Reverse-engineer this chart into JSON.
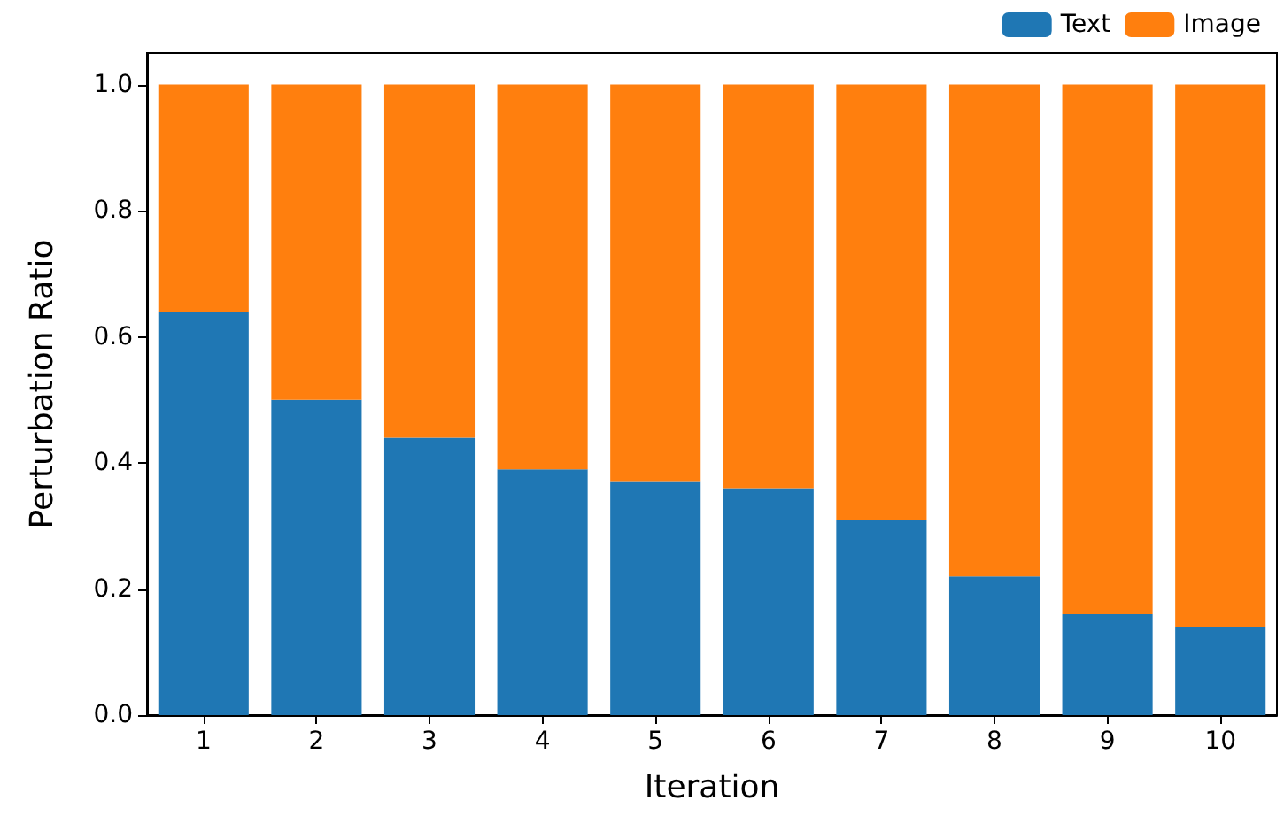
{
  "chart_data": {
    "type": "bar",
    "stacked": true,
    "xlabel": "Iteration",
    "ylabel": "Perturbation Ratio",
    "categories": [
      "1",
      "2",
      "3",
      "4",
      "5",
      "6",
      "7",
      "8",
      "9",
      "10"
    ],
    "series": [
      {
        "name": "Text",
        "color": "#1f77b4",
        "values": [
          0.64,
          0.5,
          0.44,
          0.39,
          0.37,
          0.36,
          0.31,
          0.22,
          0.16,
          0.14
        ]
      },
      {
        "name": "Image",
        "color": "#ff7f0e",
        "values": [
          0.36,
          0.5,
          0.56,
          0.61,
          0.63,
          0.64,
          0.69,
          0.78,
          0.84,
          0.86
        ]
      }
    ],
    "ylim": [
      0,
      1.05
    ],
    "yticks": [
      {
        "value": 0,
        "label": "0.0"
      },
      0.2,
      0.4,
      0.6,
      0.8,
      {
        "value": 1,
        "label": "1.0"
      }
    ],
    "grid": false,
    "legend": "top right"
  }
}
